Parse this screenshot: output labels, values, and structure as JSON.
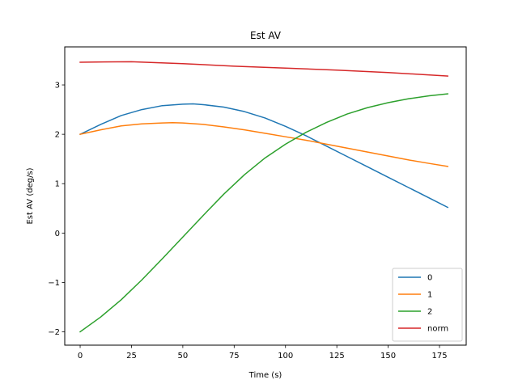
{
  "chart_data": {
    "type": "line",
    "title": "Est AV",
    "xlabel": "Time (s)",
    "ylabel": "Est AV (deg/s)",
    "xlim": [
      -7.5,
      188
    ],
    "ylim": [
      -2.27,
      3.77
    ],
    "xticks": [
      0,
      25,
      50,
      75,
      100,
      125,
      150,
      175
    ],
    "xtick_labels": [
      "0",
      "25",
      "50",
      "75",
      "100",
      "125",
      "150",
      "175"
    ],
    "yticks": [
      -2,
      -1,
      0,
      1,
      2,
      3
    ],
    "ytick_labels": [
      "−2",
      "−1",
      "0",
      "1",
      "2",
      "3"
    ],
    "grid": false,
    "legend_position": "lower-right",
    "series": [
      {
        "name": "0",
        "color": "#1f77b4",
        "x": [
          0,
          10,
          20,
          30,
          40,
          50,
          55,
          60,
          70,
          80,
          90,
          100,
          110,
          120,
          130,
          140,
          150,
          160,
          170,
          179
        ],
        "y": [
          2.0,
          2.2,
          2.38,
          2.5,
          2.58,
          2.61,
          2.615,
          2.6,
          2.55,
          2.46,
          2.33,
          2.16,
          1.97,
          1.76,
          1.55,
          1.34,
          1.13,
          0.92,
          0.71,
          0.52
        ]
      },
      {
        "name": "1",
        "color": "#ff7f0e",
        "x": [
          0,
          10,
          20,
          30,
          40,
          45,
          50,
          60,
          70,
          80,
          90,
          100,
          110,
          120,
          130,
          140,
          150,
          160,
          170,
          179
        ],
        "y": [
          2.0,
          2.09,
          2.17,
          2.21,
          2.23,
          2.235,
          2.23,
          2.2,
          2.15,
          2.09,
          2.02,
          1.95,
          1.88,
          1.8,
          1.72,
          1.64,
          1.56,
          1.48,
          1.41,
          1.35
        ]
      },
      {
        "name": "2",
        "color": "#2ca02c",
        "x": [
          0,
          10,
          20,
          30,
          40,
          50,
          60,
          70,
          80,
          90,
          100,
          110,
          120,
          130,
          140,
          150,
          160,
          170,
          179
        ],
        "y": [
          -2.0,
          -1.7,
          -1.35,
          -0.95,
          -0.52,
          -0.08,
          0.36,
          0.79,
          1.18,
          1.52,
          1.8,
          2.04,
          2.24,
          2.41,
          2.54,
          2.64,
          2.72,
          2.78,
          2.82
        ]
      },
      {
        "name": "norm",
        "color": "#d62728",
        "x": [
          0,
          25,
          50,
          75,
          100,
          125,
          150,
          179
        ],
        "y": [
          3.46,
          3.47,
          3.43,
          3.38,
          3.34,
          3.3,
          3.25,
          3.18
        ]
      }
    ]
  }
}
